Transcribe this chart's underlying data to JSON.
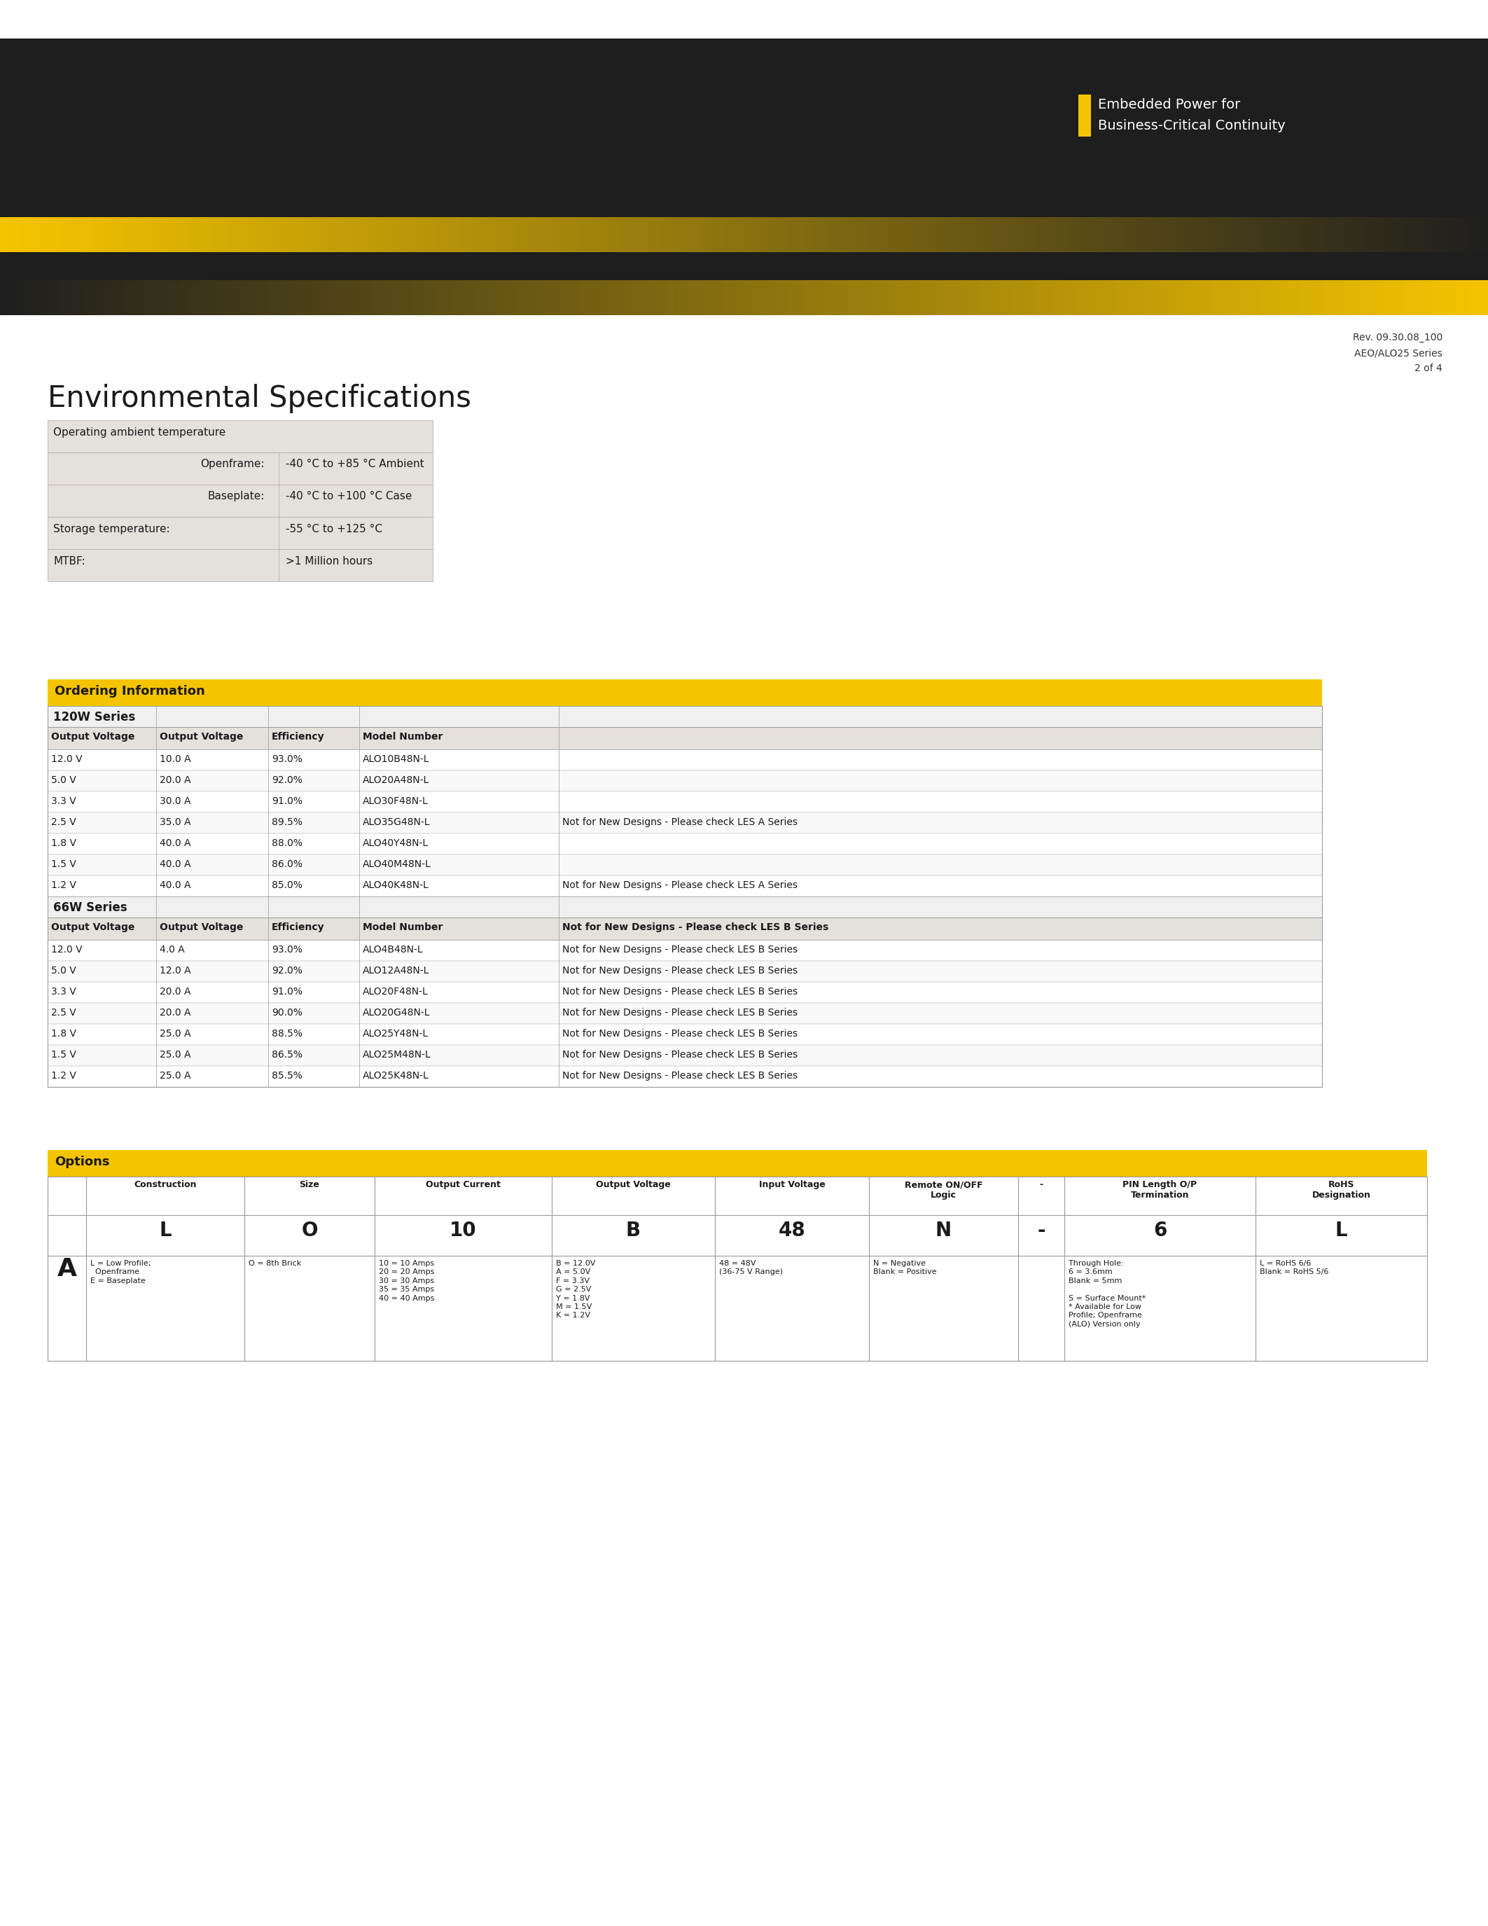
{
  "page_bg": "#ffffff",
  "header_dark_bg": "#1e1e1e",
  "header_yellow": "#f5c400",
  "text_color": "#1a1a1a",
  "white": "#ffffff",
  "table_bg": "#e4e0da",
  "border_color": "#999999",
  "embedded_line1": "Embedded Power for",
  "embedded_line2": "Business-Critical Continuity",
  "rev_lines": [
    "Rev. 09.30.08_100",
    "AEO/ALO25 Series",
    "2 of 4"
  ],
  "env_title": "Environmental Specifications",
  "ordering_title": "Ordering Information",
  "series_120w": "120W Series",
  "series_66w": "66W Series",
  "col_headers": [
    "Output Voltage",
    "Output Voltage",
    "Efficiency",
    "Model Number"
  ],
  "rows_120w": [
    [
      "12.0 V",
      "10.0 A",
      "93.0%",
      "ALO10B48N-L",
      ""
    ],
    [
      "5.0 V",
      "20.0 A",
      "92.0%",
      "ALO20A48N-L",
      ""
    ],
    [
      "3.3 V",
      "30.0 A",
      "91.0%",
      "ALO30F48N-L",
      ""
    ],
    [
      "2.5 V",
      "35.0 A",
      "89.5%",
      "ALO35G48N-L",
      "Not for New Designs - Please check LES A Series"
    ],
    [
      "1.8 V",
      "40.0 A",
      "88.0%",
      "ALO40Y48N-L",
      ""
    ],
    [
      "1.5 V",
      "40.0 A",
      "86.0%",
      "ALO40M48N-L",
      ""
    ],
    [
      "1.2 V",
      "40.0 A",
      "85.0%",
      "ALO40K48N-L",
      "Not for New Designs - Please check LES A Series"
    ]
  ],
  "rows_66w": [
    [
      "12.0 V",
      "4.0 A",
      "93.0%",
      "ALO4B48N-L",
      "Not for New Designs - Please check LES B Series"
    ],
    [
      "5.0 V",
      "12.0 A",
      "92.0%",
      "ALO12A48N-L",
      "Not for New Designs - Please check LES B Series"
    ],
    [
      "3.3 V",
      "20.0 A",
      "91.0%",
      "ALO20F48N-L",
      "Not for New Designs - Please check LES B Series"
    ],
    [
      "2.5 V",
      "20.0 A",
      "90.0%",
      "ALO20G48N-L",
      "Not for New Designs - Please check LES B Series"
    ],
    [
      "1.8 V",
      "25.0 A",
      "88.5%",
      "ALO25Y48N-L",
      "Not for New Designs - Please check LES B Series"
    ],
    [
      "1.5 V",
      "25.0 A",
      "86.5%",
      "ALO25M48N-L",
      "Not for New Designs - Please check LES B Series"
    ],
    [
      "1.2 V",
      "25.0 A",
      "85.5%",
      "ALO25K48N-L",
      "Not for New Designs - Please check LES B Series"
    ]
  ],
  "options_title": "Options",
  "options_col_headers": [
    "Construction",
    "Size",
    "Output Current",
    "Output Voltage",
    "Input Voltage",
    "Remote ON/OFF\nLogic",
    "-",
    "PIN Length O/P\nTermination",
    "RoHS\nDesignation"
  ],
  "options_letter": "A",
  "options_values": [
    "L",
    "O",
    "10",
    "B",
    "48",
    "N",
    "-",
    "6",
    "L"
  ],
  "options_desc": [
    "L = Low Profile;\n  Openframe\nE = Baseplate",
    "O = 8th Brick",
    "10 = 10 Amps\n20 = 20 Amps\n30 = 30 Amps\n35 = 35 Amps\n40 = 40 Amps",
    "B = 12.0V\nA = 5.0V\nF = 3.3V\nG = 2.5V\nY = 1.8V\nM = 1.5V\nK = 1.2V",
    "48 = 48V\n(36-75 V Range)",
    "N = Negative\nBlank = Positive",
    "",
    "Through Hole:\n6 = 3.6mm\nBlank = 5mm\n\nS = Surface Mount*\n* Available for Low\nProfile; Openframe\n(ALO) Version only",
    "L = RoHS 6/6\nBlank = RoHS 5/6"
  ]
}
